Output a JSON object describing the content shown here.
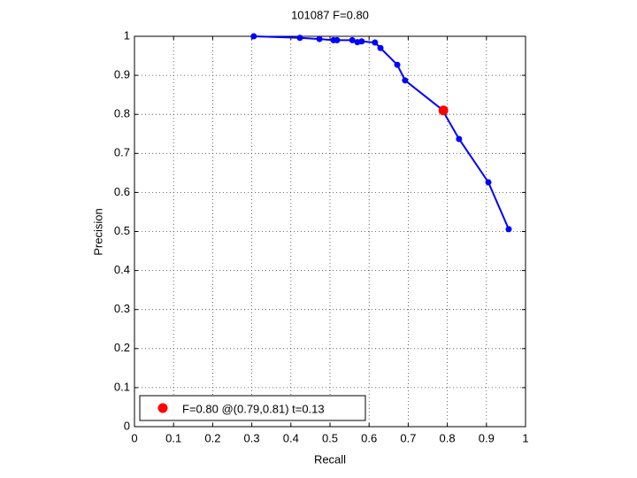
{
  "chart_data": {
    "type": "line",
    "title": "101087 F=0.80",
    "x_label": "Recall",
    "y_label": "Precision",
    "series": [
      {
        "color": "#0000ff",
        "x": [
          0.305,
          0.423,
          0.473,
          0.509,
          0.518,
          0.557,
          0.57,
          0.581,
          0.615,
          0.629,
          0.672,
          0.692,
          0.787,
          0.83,
          0.905,
          0.957
        ],
        "values": [
          1.0,
          0.996,
          0.993,
          0.99,
          0.99,
          0.99,
          0.985,
          0.987,
          0.984,
          0.97,
          0.927,
          0.887,
          0.812,
          0.737,
          0.626,
          0.506
        ]
      },
      {
        "name": "F=0.80 @(0.79,0.81) t=0.13",
        "color": "#ff0000",
        "x": [
          0.79
        ],
        "values": [
          0.81
        ]
      }
    ],
    "xlim": [
      0,
      1
    ],
    "ylim": [
      0,
      1
    ],
    "xticks": [
      0,
      0.1,
      0.2,
      0.3,
      0.4,
      0.5,
      0.6,
      0.7,
      0.8,
      0.9,
      1
    ],
    "yticks": [
      0,
      0.1,
      0.2,
      0.3,
      0.4,
      0.5,
      0.6,
      0.7,
      0.8,
      0.9,
      1
    ],
    "grid": true,
    "legend": "lower left"
  }
}
